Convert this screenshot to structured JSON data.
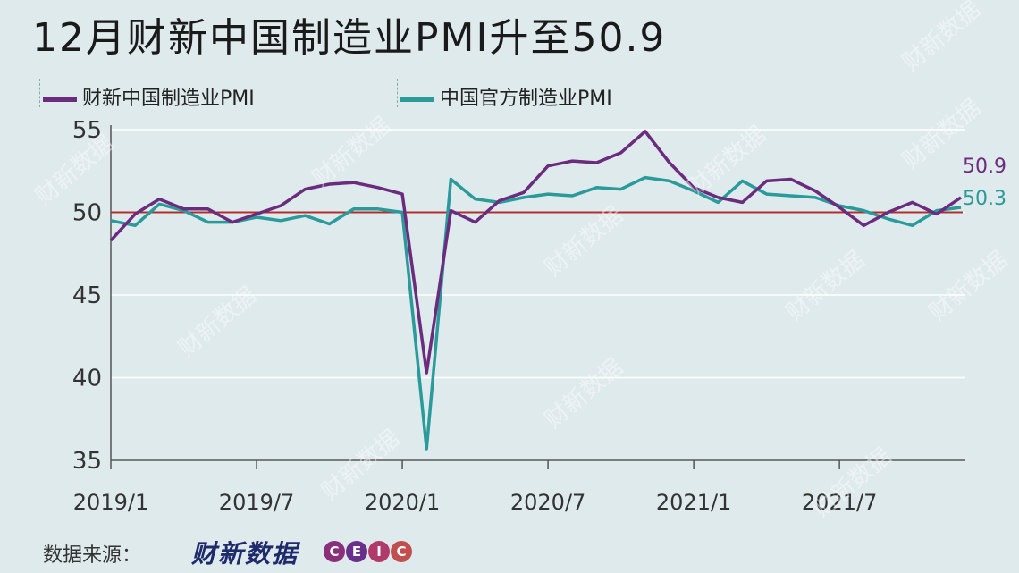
{
  "title": "12月财新中国制造业PMI升至50.9",
  "footer": {
    "source_label": "数据来源：",
    "brand": "财新数据",
    "ceic_letters": [
      "C",
      "E",
      "I",
      "C"
    ]
  },
  "watermark_text": "财新数据",
  "chart_data": {
    "type": "line",
    "title": "12月财新中国制造业PMI升至50.9",
    "xlabel": "",
    "ylabel": "",
    "ylim": [
      35,
      55
    ],
    "yticks": [
      35,
      40,
      45,
      50,
      55
    ],
    "xtick_labels": [
      "2019/1",
      "2019/7",
      "2020/1",
      "2020/7",
      "2021/1",
      "2021/7"
    ],
    "reference_line": 50,
    "reference_line_color": "#b03030",
    "x": [
      "2019/1",
      "2019/2",
      "2019/3",
      "2019/4",
      "2019/5",
      "2019/6",
      "2019/7",
      "2019/8",
      "2019/9",
      "2019/10",
      "2019/11",
      "2019/12",
      "2020/1",
      "2020/2",
      "2020/3",
      "2020/4",
      "2020/5",
      "2020/6",
      "2020/7",
      "2020/8",
      "2020/9",
      "2020/10",
      "2020/11",
      "2020/12",
      "2021/1",
      "2021/2",
      "2021/3",
      "2021/4",
      "2021/5",
      "2021/6",
      "2021/7",
      "2021/8",
      "2021/9",
      "2021/10",
      "2021/11",
      "2021/12"
    ],
    "series": [
      {
        "name": "财新中国制造业PMI",
        "color": "#6b2c7e",
        "values": [
          48.3,
          49.9,
          50.8,
          50.2,
          50.2,
          49.4,
          49.9,
          50.4,
          51.4,
          51.7,
          51.8,
          51.5,
          51.1,
          40.3,
          50.1,
          49.4,
          50.7,
          51.2,
          52.8,
          53.1,
          53.0,
          53.6,
          54.9,
          53.0,
          51.5,
          50.9,
          50.6,
          51.9,
          52.0,
          51.3,
          50.3,
          49.2,
          50.0,
          50.6,
          49.9,
          50.9
        ],
        "end_label": "50.9"
      },
      {
        "name": "中国官方制造业PMI",
        "color": "#2a9a9a",
        "values": [
          49.5,
          49.2,
          50.5,
          50.1,
          49.4,
          49.4,
          49.7,
          49.5,
          49.8,
          49.3,
          50.2,
          50.2,
          50.0,
          35.7,
          52.0,
          50.8,
          50.6,
          50.9,
          51.1,
          51.0,
          51.5,
          51.4,
          52.1,
          51.9,
          51.3,
          50.6,
          51.9,
          51.1,
          51.0,
          50.9,
          50.4,
          50.1,
          49.6,
          49.2,
          50.1,
          50.3
        ],
        "end_label": "50.3"
      }
    ],
    "legend_position": "top-left",
    "grid": true,
    "grid_axis": "y"
  }
}
